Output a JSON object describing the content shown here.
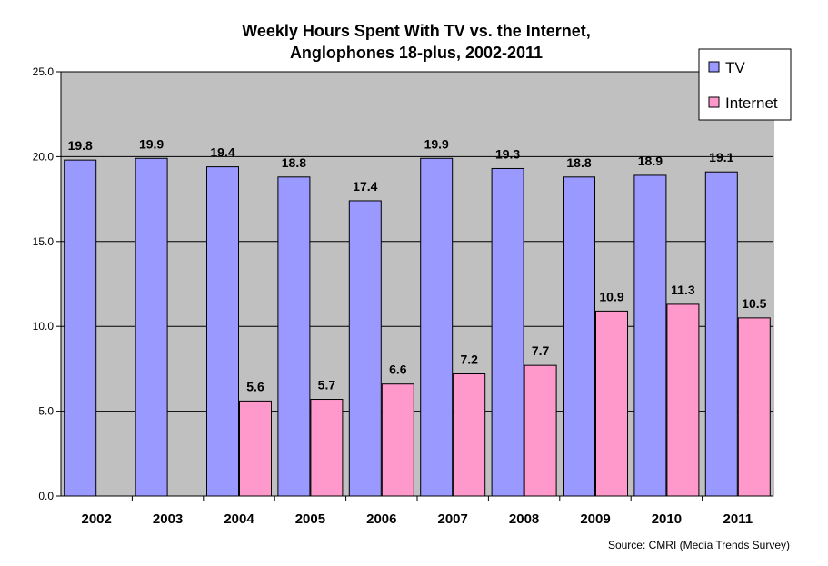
{
  "chart_data": {
    "type": "bar",
    "title_lines": [
      "Weekly Hours Spent With TV vs. the Internet,",
      "Anglophones 18-plus, 2002-2011"
    ],
    "categories": [
      "2002",
      "2003",
      "2004",
      "2005",
      "2006",
      "2007",
      "2008",
      "2009",
      "2010",
      "2011"
    ],
    "series": [
      {
        "name": "TV",
        "color": "#9999ff",
        "values": [
          19.8,
          19.9,
          19.4,
          18.8,
          17.4,
          19.9,
          19.3,
          18.8,
          18.9,
          19.1
        ],
        "labels": [
          "19.8",
          "19.9",
          "19.4",
          "18.8",
          "17.4",
          "19.9",
          "19.3",
          "18.8",
          "18.9",
          "19.1"
        ]
      },
      {
        "name": "Internet",
        "color": "#ff99cc",
        "values": [
          null,
          null,
          5.6,
          5.7,
          6.6,
          7.2,
          7.7,
          10.9,
          11.3,
          10.5
        ],
        "labels": [
          "",
          "",
          "5.6",
          "5.7",
          "6.6",
          "7.2",
          "7.7",
          "10.9",
          "11.3",
          "10.5"
        ]
      }
    ],
    "ylim": [
      0,
      25
    ],
    "yticks": [
      "0.0",
      "5.0",
      "10.0",
      "15.0",
      "20.0",
      "25.0"
    ],
    "ytick_values": [
      0,
      5,
      10,
      15,
      20,
      25
    ],
    "xlabel": "",
    "ylabel": "",
    "grid": true,
    "plot_background": "#c0c0c0",
    "legend_position": "top-right",
    "source": "Source: CMRI (Media Trends Survey)"
  }
}
